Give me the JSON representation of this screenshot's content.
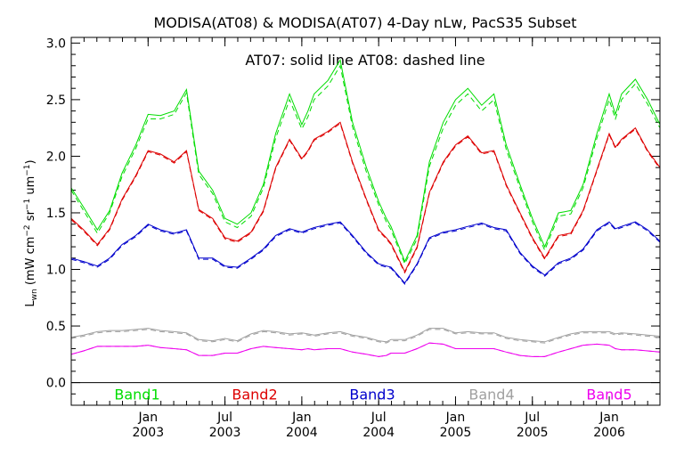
{
  "chart_data": {
    "type": "line",
    "title": "MODISA(AT08) & MODISA(AT07) 4-Day nLw, PacS35 Subset",
    "note": "AT07: solid line   AT08: dashed line",
    "ylabel": {
      "prefix": "L",
      "sub": "wn",
      "units_open": " (mW cm",
      "sup1": "−2",
      "mid1": " sr",
      "sup2": "−1",
      "mid2": " um",
      "sup3": "−1",
      "close": ")"
    },
    "ylim": [
      -0.2,
      3.05
    ],
    "xlim": [
      2002.5,
      2006.33
    ],
    "yticks": [
      "0.0",
      "0.5",
      "1.0",
      "1.5",
      "2.0",
      "2.5",
      "3.0"
    ],
    "xticks": [
      {
        "x": 2003.0,
        "top": "Jan",
        "bottom": "2003"
      },
      {
        "x": 2003.5,
        "top": "Jul",
        "bottom": "2003"
      },
      {
        "x": 2004.0,
        "top": "Jan",
        "bottom": "2004"
      },
      {
        "x": 2004.5,
        "top": "Jul",
        "bottom": "2004"
      },
      {
        "x": 2005.0,
        "top": "Jan",
        "bottom": "2005"
      },
      {
        "x": 2005.5,
        "top": "Jul",
        "bottom": "2005"
      },
      {
        "x": 2006.0,
        "top": "Jan",
        "bottom": "2006"
      }
    ],
    "zero_line": 0.0,
    "series": [
      {
        "name": "Band1",
        "color": "#00dd00",
        "x": [
          2002.5,
          2002.58,
          2002.67,
          2002.75,
          2002.83,
          2002.92,
          2003.0,
          2003.08,
          2003.17,
          2003.25,
          2003.33,
          2003.42,
          2003.5,
          2003.58,
          2003.67,
          2003.75,
          2003.83,
          2003.92,
          2004.0,
          2004.04,
          2004.08,
          2004.17,
          2004.25,
          2004.33,
          2004.42,
          2004.5,
          2004.55,
          2004.58,
          2004.67,
          2004.75,
          2004.83,
          2004.92,
          2005.0,
          2005.08,
          2005.17,
          2005.25,
          2005.33,
          2005.42,
          2005.5,
          2005.58,
          2005.67,
          2005.75,
          2005.83,
          2005.92,
          2006.0,
          2006.04,
          2006.08,
          2006.17,
          2006.25,
          2006.33
        ],
        "solid": [
          1.72,
          1.55,
          1.35,
          1.52,
          1.85,
          2.1,
          2.37,
          2.36,
          2.4,
          2.59,
          1.87,
          1.7,
          1.45,
          1.4,
          1.5,
          1.75,
          2.2,
          2.55,
          2.28,
          2.4,
          2.55,
          2.67,
          2.85,
          2.3,
          1.9,
          1.6,
          1.45,
          1.38,
          1.07,
          1.3,
          1.95,
          2.3,
          2.5,
          2.6,
          2.45,
          2.55,
          2.1,
          1.75,
          1.45,
          1.2,
          1.5,
          1.52,
          1.75,
          2.2,
          2.55,
          2.37,
          2.55,
          2.68,
          2.5,
          2.28
        ],
        "dashed": [
          1.7,
          1.52,
          1.32,
          1.5,
          1.82,
          2.07,
          2.33,
          2.33,
          2.37,
          2.56,
          1.84,
          1.67,
          1.42,
          1.37,
          1.47,
          1.72,
          2.16,
          2.5,
          2.24,
          2.35,
          2.5,
          2.62,
          2.8,
          2.26,
          1.86,
          1.57,
          1.42,
          1.35,
          1.05,
          1.27,
          1.91,
          2.25,
          2.45,
          2.55,
          2.4,
          2.5,
          2.06,
          1.72,
          1.42,
          1.17,
          1.47,
          1.49,
          1.72,
          2.16,
          2.5,
          2.33,
          2.5,
          2.64,
          2.46,
          2.25
        ]
      },
      {
        "name": "Band2",
        "color": "#dd0000",
        "x": [
          2002.5,
          2002.58,
          2002.67,
          2002.75,
          2002.83,
          2002.92,
          2003.0,
          2003.08,
          2003.17,
          2003.25,
          2003.33,
          2003.42,
          2003.5,
          2003.58,
          2003.67,
          2003.75,
          2003.83,
          2003.92,
          2004.0,
          2004.04,
          2004.08,
          2004.17,
          2004.25,
          2004.33,
          2004.42,
          2004.5,
          2004.55,
          2004.58,
          2004.67,
          2004.75,
          2004.83,
          2004.92,
          2005.0,
          2005.08,
          2005.17,
          2005.25,
          2005.33,
          2005.42,
          2005.5,
          2005.58,
          2005.67,
          2005.75,
          2005.83,
          2005.92,
          2006.0,
          2006.04,
          2006.08,
          2006.17,
          2006.25,
          2006.33
        ],
        "solid": [
          1.45,
          1.35,
          1.22,
          1.36,
          1.62,
          1.83,
          2.05,
          2.02,
          1.95,
          2.05,
          1.53,
          1.45,
          1.28,
          1.25,
          1.33,
          1.52,
          1.9,
          2.15,
          1.98,
          2.05,
          2.15,
          2.22,
          2.3,
          1.95,
          1.62,
          1.35,
          1.28,
          1.23,
          0.98,
          1.2,
          1.68,
          1.95,
          2.1,
          2.18,
          2.03,
          2.05,
          1.75,
          1.5,
          1.28,
          1.1,
          1.3,
          1.32,
          1.52,
          1.88,
          2.2,
          2.08,
          2.15,
          2.25,
          2.05,
          1.9
        ],
        "dashed": [
          1.44,
          1.34,
          1.21,
          1.35,
          1.61,
          1.82,
          2.04,
          2.01,
          1.94,
          2.04,
          1.52,
          1.44,
          1.27,
          1.24,
          1.32,
          1.51,
          1.89,
          2.14,
          1.97,
          2.04,
          2.14,
          2.21,
          2.29,
          1.94,
          1.61,
          1.34,
          1.27,
          1.22,
          0.97,
          1.19,
          1.67,
          1.94,
          2.09,
          2.17,
          2.02,
          2.04,
          1.74,
          1.49,
          1.27,
          1.09,
          1.29,
          1.31,
          1.51,
          1.87,
          2.19,
          2.07,
          2.14,
          2.24,
          2.04,
          1.89
        ]
      },
      {
        "name": "Band3",
        "color": "#0000cc",
        "x": [
          2002.5,
          2002.58,
          2002.67,
          2002.75,
          2002.83,
          2002.92,
          2003.0,
          2003.08,
          2003.17,
          2003.25,
          2003.33,
          2003.42,
          2003.5,
          2003.58,
          2003.67,
          2003.75,
          2003.83,
          2003.92,
          2004.0,
          2004.04,
          2004.08,
          2004.17,
          2004.25,
          2004.33,
          2004.42,
          2004.5,
          2004.55,
          2004.58,
          2004.67,
          2004.75,
          2004.83,
          2004.92,
          2005.0,
          2005.08,
          2005.17,
          2005.25,
          2005.33,
          2005.42,
          2005.5,
          2005.58,
          2005.67,
          2005.75,
          2005.83,
          2005.92,
          2006.0,
          2006.04,
          2006.08,
          2006.17,
          2006.25,
          2006.33
        ],
        "solid": [
          1.1,
          1.07,
          1.03,
          1.1,
          1.22,
          1.3,
          1.4,
          1.35,
          1.32,
          1.35,
          1.1,
          1.1,
          1.03,
          1.02,
          1.1,
          1.18,
          1.3,
          1.36,
          1.33,
          1.35,
          1.37,
          1.4,
          1.42,
          1.3,
          1.15,
          1.05,
          1.03,
          1.02,
          0.88,
          1.05,
          1.28,
          1.33,
          1.35,
          1.38,
          1.41,
          1.37,
          1.35,
          1.15,
          1.03,
          0.95,
          1.06,
          1.1,
          1.18,
          1.35,
          1.42,
          1.36,
          1.38,
          1.42,
          1.35,
          1.25
        ],
        "dashed": [
          1.09,
          1.06,
          1.02,
          1.09,
          1.21,
          1.29,
          1.39,
          1.34,
          1.31,
          1.34,
          1.09,
          1.09,
          1.02,
          1.01,
          1.09,
          1.17,
          1.29,
          1.35,
          1.32,
          1.34,
          1.36,
          1.39,
          1.41,
          1.29,
          1.14,
          1.04,
          1.02,
          1.01,
          0.87,
          1.04,
          1.27,
          1.32,
          1.34,
          1.37,
          1.4,
          1.36,
          1.34,
          1.14,
          1.02,
          0.94,
          1.05,
          1.09,
          1.17,
          1.34,
          1.41,
          1.35,
          1.37,
          1.41,
          1.34,
          1.24
        ]
      },
      {
        "name": "Band4",
        "color": "#a0a0a0",
        "x": [
          2002.5,
          2002.58,
          2002.67,
          2002.75,
          2002.83,
          2002.92,
          2003.0,
          2003.08,
          2003.17,
          2003.25,
          2003.33,
          2003.42,
          2003.5,
          2003.58,
          2003.67,
          2003.75,
          2003.83,
          2003.92,
          2004.0,
          2004.04,
          2004.08,
          2004.17,
          2004.25,
          2004.33,
          2004.42,
          2004.5,
          2004.55,
          2004.58,
          2004.67,
          2004.75,
          2004.83,
          2004.92,
          2005.0,
          2005.08,
          2005.17,
          2005.25,
          2005.33,
          2005.42,
          2005.5,
          2005.58,
          2005.67,
          2005.75,
          2005.83,
          2005.92,
          2006.0,
          2006.04,
          2006.08,
          2006.17,
          2006.25,
          2006.33
        ],
        "solid": [
          0.4,
          0.42,
          0.45,
          0.46,
          0.46,
          0.47,
          0.48,
          0.46,
          0.45,
          0.44,
          0.38,
          0.37,
          0.39,
          0.37,
          0.43,
          0.46,
          0.45,
          0.43,
          0.44,
          0.43,
          0.42,
          0.44,
          0.45,
          0.42,
          0.4,
          0.37,
          0.36,
          0.38,
          0.38,
          0.42,
          0.48,
          0.48,
          0.44,
          0.45,
          0.44,
          0.44,
          0.4,
          0.38,
          0.37,
          0.36,
          0.4,
          0.43,
          0.45,
          0.45,
          0.45,
          0.43,
          0.44,
          0.43,
          0.42,
          0.41
        ],
        "dashed": [
          0.39,
          0.41,
          0.44,
          0.45,
          0.45,
          0.46,
          0.47,
          0.45,
          0.44,
          0.43,
          0.37,
          0.36,
          0.38,
          0.36,
          0.42,
          0.45,
          0.44,
          0.42,
          0.43,
          0.42,
          0.41,
          0.43,
          0.44,
          0.41,
          0.39,
          0.36,
          0.35,
          0.37,
          0.37,
          0.41,
          0.47,
          0.47,
          0.43,
          0.44,
          0.43,
          0.43,
          0.39,
          0.37,
          0.36,
          0.35,
          0.39,
          0.42,
          0.44,
          0.44,
          0.44,
          0.42,
          0.43,
          0.42,
          0.41,
          0.4
        ]
      },
      {
        "name": "Band5",
        "color": "#ee00ee",
        "x": [
          2002.5,
          2002.58,
          2002.67,
          2002.75,
          2002.83,
          2002.92,
          2003.0,
          2003.08,
          2003.17,
          2003.25,
          2003.33,
          2003.42,
          2003.5,
          2003.58,
          2003.67,
          2003.75,
          2003.83,
          2003.92,
          2004.0,
          2004.04,
          2004.08,
          2004.17,
          2004.25,
          2004.33,
          2004.42,
          2004.5,
          2004.55,
          2004.58,
          2004.67,
          2004.75,
          2004.83,
          2004.92,
          2005.0,
          2005.08,
          2005.17,
          2005.25,
          2005.33,
          2005.42,
          2005.5,
          2005.58,
          2005.67,
          2005.75,
          2005.83,
          2005.92,
          2006.0,
          2006.04,
          2006.08,
          2006.17,
          2006.25,
          2006.33
        ],
        "solid": [
          0.25,
          0.28,
          0.32,
          0.32,
          0.32,
          0.32,
          0.33,
          0.31,
          0.3,
          0.29,
          0.24,
          0.24,
          0.26,
          0.26,
          0.3,
          0.32,
          0.31,
          0.3,
          0.29,
          0.3,
          0.29,
          0.3,
          0.3,
          0.27,
          0.25,
          0.23,
          0.24,
          0.26,
          0.26,
          0.3,
          0.35,
          0.34,
          0.3,
          0.3,
          0.3,
          0.3,
          0.27,
          0.24,
          0.23,
          0.23,
          0.27,
          0.3,
          0.33,
          0.34,
          0.33,
          0.3,
          0.29,
          0.29,
          0.28,
          0.27
        ],
        "dashed": [
          0.25,
          0.28,
          0.32,
          0.32,
          0.32,
          0.32,
          0.33,
          0.31,
          0.3,
          0.29,
          0.24,
          0.24,
          0.26,
          0.26,
          0.3,
          0.32,
          0.31,
          0.3,
          0.29,
          0.3,
          0.29,
          0.3,
          0.3,
          0.27,
          0.25,
          0.23,
          0.24,
          0.26,
          0.26,
          0.3,
          0.35,
          0.34,
          0.3,
          0.3,
          0.3,
          0.3,
          0.27,
          0.24,
          0.23,
          0.23,
          0.27,
          0.3,
          0.33,
          0.34,
          0.33,
          0.3,
          0.29,
          0.29,
          0.28,
          0.27
        ]
      }
    ]
  }
}
